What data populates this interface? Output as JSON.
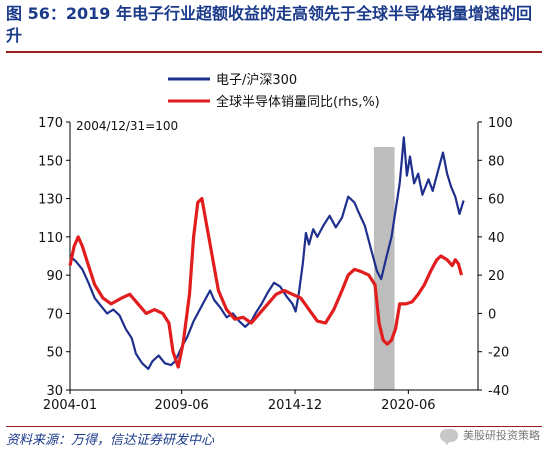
{
  "figure": {
    "title": "图 56：2019 年电子行业超额收益的走高领先于全球半导体销量增速的回升",
    "source": "资料来源：万得，信达证券研发中心",
    "watermark": "美股研投资策略"
  },
  "colors": {
    "title": "#1b3a8a",
    "rule": "#9b1c1c",
    "series1": "#1f2f8e",
    "series2": "#e11d1d",
    "shade": "#bdbdbd"
  },
  "chart_data": {
    "type": "line",
    "annotation": "2004/12/31=100",
    "x_ticks": [
      "2004-01",
      "2009-06",
      "2014-12",
      "2020-06"
    ],
    "x_tick_positions": [
      2004.0,
      2009.42,
      2014.92,
      2020.42
    ],
    "xlim": [
      2004.0,
      2023.8
    ],
    "y_left": {
      "ticks": [
        30,
        50,
        70,
        90,
        110,
        130,
        150,
        170
      ],
      "lim": [
        30,
        170
      ]
    },
    "y_right": {
      "ticks": [
        -40,
        -20,
        0,
        20,
        40,
        60,
        80,
        100
      ],
      "lim": [
        -40,
        100
      ]
    },
    "shaded_region": [
      2018.75,
      2019.75
    ],
    "legend_position": "top",
    "series": [
      {
        "name": "电子/沪深300",
        "axis": "left",
        "color": "#1f2f8e",
        "points": [
          [
            2004.0,
            100
          ],
          [
            2004.3,
            97
          ],
          [
            2004.6,
            93
          ],
          [
            2004.9,
            86
          ],
          [
            2005.2,
            78
          ],
          [
            2005.5,
            74
          ],
          [
            2005.8,
            70
          ],
          [
            2006.1,
            72
          ],
          [
            2006.4,
            69
          ],
          [
            2006.7,
            62
          ],
          [
            2007.0,
            57
          ],
          [
            2007.2,
            49
          ],
          [
            2007.5,
            44
          ],
          [
            2007.8,
            41
          ],
          [
            2008.0,
            45
          ],
          [
            2008.3,
            48
          ],
          [
            2008.6,
            44
          ],
          [
            2008.9,
            43
          ],
          [
            2009.1,
            45
          ],
          [
            2009.4,
            52
          ],
          [
            2009.7,
            58
          ],
          [
            2010.0,
            66
          ],
          [
            2010.3,
            72
          ],
          [
            2010.5,
            76
          ],
          [
            2010.8,
            82
          ],
          [
            2011.0,
            77
          ],
          [
            2011.3,
            73
          ],
          [
            2011.6,
            68
          ],
          [
            2011.9,
            70
          ],
          [
            2012.2,
            66
          ],
          [
            2012.5,
            63
          ],
          [
            2012.8,
            66
          ],
          [
            2013.0,
            70
          ],
          [
            2013.3,
            75
          ],
          [
            2013.6,
            81
          ],
          [
            2013.9,
            86
          ],
          [
            2014.2,
            84
          ],
          [
            2014.5,
            79
          ],
          [
            2014.8,
            75
          ],
          [
            2014.95,
            71
          ],
          [
            2015.1,
            80
          ],
          [
            2015.3,
            96
          ],
          [
            2015.45,
            112
          ],
          [
            2015.6,
            106
          ],
          [
            2015.8,
            114
          ],
          [
            2016.0,
            110
          ],
          [
            2016.3,
            116
          ],
          [
            2016.6,
            121
          ],
          [
            2016.9,
            115
          ],
          [
            2017.2,
            120
          ],
          [
            2017.5,
            131
          ],
          [
            2017.8,
            128
          ],
          [
            2018.0,
            123
          ],
          [
            2018.3,
            116
          ],
          [
            2018.6,
            104
          ],
          [
            2018.9,
            92
          ],
          [
            2019.1,
            88
          ],
          [
            2019.3,
            97
          ],
          [
            2019.6,
            110
          ],
          [
            2019.8,
            124
          ],
          [
            2020.0,
            138
          ],
          [
            2020.1,
            150
          ],
          [
            2020.2,
            162
          ],
          [
            2020.35,
            142
          ],
          [
            2020.5,
            152
          ],
          [
            2020.7,
            138
          ],
          [
            2020.9,
            143
          ],
          [
            2021.1,
            132
          ],
          [
            2021.4,
            140
          ],
          [
            2021.6,
            134
          ],
          [
            2021.9,
            146
          ],
          [
            2022.1,
            154
          ],
          [
            2022.3,
            143
          ],
          [
            2022.5,
            136
          ],
          [
            2022.7,
            131
          ],
          [
            2022.9,
            122
          ],
          [
            2023.1,
            129
          ]
        ]
      },
      {
        "name": "全球半导体销量同比(rhs,%)",
        "axis": "right",
        "color": "#e11d1d",
        "points": [
          [
            2004.0,
            25
          ],
          [
            2004.2,
            35
          ],
          [
            2004.4,
            40
          ],
          [
            2004.6,
            35
          ],
          [
            2004.9,
            25
          ],
          [
            2005.2,
            15
          ],
          [
            2005.6,
            8
          ],
          [
            2006.0,
            5
          ],
          [
            2006.5,
            8
          ],
          [
            2006.9,
            10
          ],
          [
            2007.3,
            5
          ],
          [
            2007.7,
            0
          ],
          [
            2008.1,
            2
          ],
          [
            2008.5,
            0
          ],
          [
            2008.8,
            -5
          ],
          [
            2009.0,
            -20
          ],
          [
            2009.25,
            -28
          ],
          [
            2009.5,
            -15
          ],
          [
            2009.8,
            10
          ],
          [
            2010.0,
            40
          ],
          [
            2010.2,
            58
          ],
          [
            2010.4,
            60
          ],
          [
            2010.6,
            48
          ],
          [
            2010.9,
            30
          ],
          [
            2011.2,
            12
          ],
          [
            2011.6,
            2
          ],
          [
            2012.0,
            -3
          ],
          [
            2012.4,
            -2
          ],
          [
            2012.8,
            -5
          ],
          [
            2013.2,
            0
          ],
          [
            2013.6,
            5
          ],
          [
            2014.0,
            10
          ],
          [
            2014.4,
            12
          ],
          [
            2014.8,
            10
          ],
          [
            2015.2,
            8
          ],
          [
            2015.6,
            2
          ],
          [
            2016.0,
            -4
          ],
          [
            2016.4,
            -5
          ],
          [
            2016.8,
            2
          ],
          [
            2017.2,
            12
          ],
          [
            2017.5,
            20
          ],
          [
            2017.8,
            23
          ],
          [
            2018.1,
            22
          ],
          [
            2018.5,
            20
          ],
          [
            2018.8,
            15
          ],
          [
            2019.0,
            -5
          ],
          [
            2019.2,
            -14
          ],
          [
            2019.4,
            -16
          ],
          [
            2019.6,
            -14
          ],
          [
            2019.8,
            -8
          ],
          [
            2020.0,
            5
          ],
          [
            2020.3,
            5
          ],
          [
            2020.6,
            6
          ],
          [
            2020.9,
            10
          ],
          [
            2021.2,
            15
          ],
          [
            2021.5,
            22
          ],
          [
            2021.8,
            28
          ],
          [
            2022.0,
            30
          ],
          [
            2022.3,
            28
          ],
          [
            2022.55,
            25
          ],
          [
            2022.7,
            28
          ],
          [
            2022.85,
            26
          ],
          [
            2023.0,
            20
          ]
        ]
      }
    ]
  }
}
